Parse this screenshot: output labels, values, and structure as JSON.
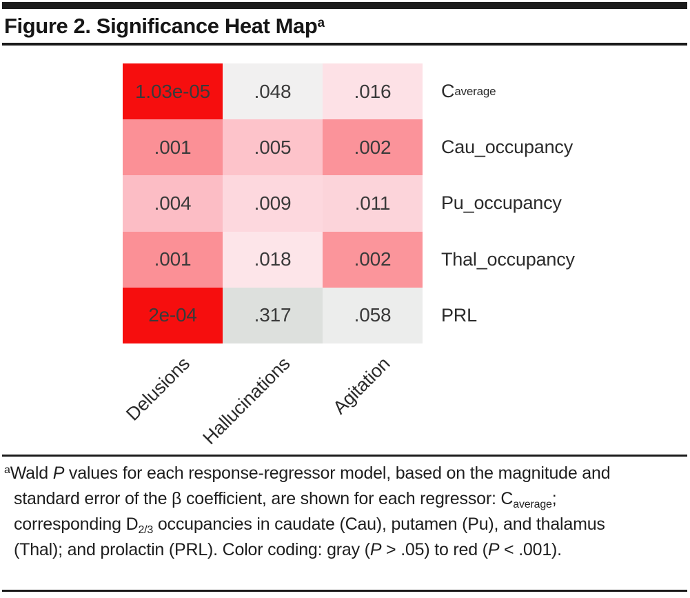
{
  "header": {
    "title": "Figure 2. Significance Heat Map",
    "title_superscript": "a"
  },
  "chart_data": {
    "type": "heatmap",
    "title": "Figure 2. Significance Heat Map",
    "columns": [
      "Delusions",
      "Hallucinations",
      "Agitation"
    ],
    "row_labels": [
      {
        "base": "C",
        "sub": "average"
      },
      {
        "base": "Cau_occupancy",
        "sub": ""
      },
      {
        "base": "Pu_occupancy",
        "sub": ""
      },
      {
        "base": "Thal_occupancy",
        "sub": ""
      },
      {
        "base": "PRL",
        "sub": ""
      }
    ],
    "cells": [
      {
        "row": "C_average",
        "col": "Delusions",
        "value": "1.03e-05",
        "numeric": 1.03e-05,
        "color": "#f60e0e"
      },
      {
        "row": "C_average",
        "col": "Hallucinations",
        "value": ".048",
        "numeric": 0.048,
        "color": "#f1f0f0"
      },
      {
        "row": "C_average",
        "col": "Agitation",
        "value": ".016",
        "numeric": 0.016,
        "color": "#fde1e6"
      },
      {
        "row": "Cau_occupancy",
        "col": "Delusions",
        "value": ".001",
        "numeric": 0.001,
        "color": "#fb9096"
      },
      {
        "row": "Cau_occupancy",
        "col": "Hallucinations",
        "value": ".005",
        "numeric": 0.005,
        "color": "#fdc3ca"
      },
      {
        "row": "Cau_occupancy",
        "col": "Agitation",
        "value": ".002",
        "numeric": 0.002,
        "color": "#fb939a"
      },
      {
        "row": "Pu_occupancy",
        "col": "Delusions",
        "value": ".004",
        "numeric": 0.004,
        "color": "#fcbdc5"
      },
      {
        "row": "Pu_occupancy",
        "col": "Hallucinations",
        "value": ".009",
        "numeric": 0.009,
        "color": "#fdd8de"
      },
      {
        "row": "Pu_occupancy",
        "col": "Agitation",
        "value": ".011",
        "numeric": 0.011,
        "color": "#fcd4da"
      },
      {
        "row": "Thal_occupancy",
        "col": "Delusions",
        "value": ".001",
        "numeric": 0.001,
        "color": "#fb9096"
      },
      {
        "row": "Thal_occupancy",
        "col": "Hallucinations",
        "value": ".018",
        "numeric": 0.018,
        "color": "#fde5e9"
      },
      {
        "row": "Thal_occupancy",
        "col": "Agitation",
        "value": ".002",
        "numeric": 0.002,
        "color": "#fb959b"
      },
      {
        "row": "PRL",
        "col": "Delusions",
        "value": "2e-04",
        "numeric": 0.0002,
        "color": "#f60e0e"
      },
      {
        "row": "PRL",
        "col": "Hallucinations",
        "value": ".317",
        "numeric": 0.317,
        "color": "#dde0dd"
      },
      {
        "row": "PRL",
        "col": "Agitation",
        "value": ".058",
        "numeric": 0.058,
        "color": "#ecedec"
      }
    ],
    "color_scale": {
      "description": "gray (P > .05) to red (P < .001)",
      "gray": "#dde0dd",
      "red": "#f60e0e"
    },
    "legend_position": "none",
    "grid": false
  },
  "footnote": {
    "marker": "a",
    "seg_wald": "Wald ",
    "p": "P",
    "seg_values": " values for each response-regressor model, based on the magnitude and standard error of the β coefficient, are shown for each regressor: C",
    "sub_average": "average",
    "seg_corresponding": "; corresponding D",
    "sub_d23": "2/3",
    "seg_occupancies": " occupancies in caudate (Cau), putamen (Pu), and thalamus (Thal); and prolactin (PRL). Color coding: gray (",
    "seg_gt": " > .05) to red (",
    "seg_lt": " < .001)."
  }
}
